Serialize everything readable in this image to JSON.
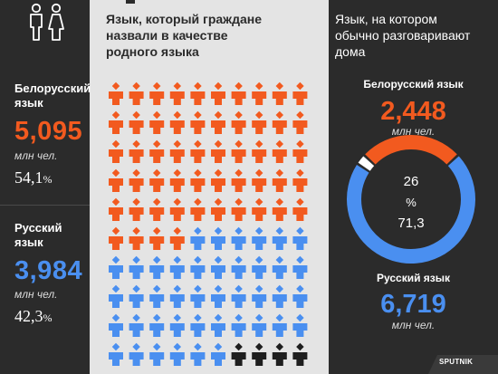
{
  "colors": {
    "belarusian": "#f25a1f",
    "russian": "#4a8ff0",
    "other": "#1e1e1e",
    "background_dark": "#2b2b2b",
    "background_light": "#e4e4e4"
  },
  "left_panel": {
    "belarusian": {
      "label_line1": "Белорусский",
      "label_line2": "язык",
      "value": "5,095",
      "unit": "млн чел.",
      "percent": "54,1",
      "percent_sign": "%"
    },
    "russian": {
      "label_line1": "Русский",
      "label_line2": "язык",
      "value": "3,984",
      "unit": "млн чел.",
      "percent": "42,3",
      "percent_sign": "%"
    }
  },
  "middle_panel": {
    "title_line1": "Язык, который граждане",
    "title_line2": "назвали в качестве",
    "title_line3": "родного языка"
  },
  "right_panel": {
    "title_line1": "Язык, на котором",
    "title_line2": "обычно разговаривают",
    "title_line3": "дома",
    "belarusian": {
      "label": "Белорусский язык",
      "value": "2,448",
      "unit": "млн чел."
    },
    "russian": {
      "label": "Русский язык",
      "value": "6,719",
      "unit": "млн чел."
    },
    "donut_top": "26",
    "donut_mid": "%",
    "donut_bottom": "71,3"
  },
  "logo": {
    "text": "SPUTNIK"
  },
  "chart_data": [
    {
      "type": "pictogram",
      "title": "Язык, который граждане назвали в качестве родного языка",
      "columns": 10,
      "rows": 10,
      "series": [
        {
          "name": "Белорусский язык",
          "value_mln": 5.095,
          "percent": 54.1,
          "icons": 54,
          "color": "#f25a1f"
        },
        {
          "name": "Русский язык",
          "value_mln": 3.984,
          "percent": 42.3,
          "icons": 42,
          "color": "#4a8ff0"
        },
        {
          "icons": 4,
          "color": "#1e1e1e"
        }
      ]
    },
    {
      "type": "pie",
      "title": "Язык, на котором обычно разговаривают дома",
      "series": [
        {
          "name": "Белорусский язык",
          "value_mln": 2.448,
          "percent": 26,
          "color": "#f25a1f"
        },
        {
          "name": "Русский язык",
          "value_mln": 6.719,
          "percent": 71.3,
          "color": "#4a8ff0"
        },
        {
          "percent": 2.7,
          "color": "#ffffff"
        }
      ]
    }
  ]
}
